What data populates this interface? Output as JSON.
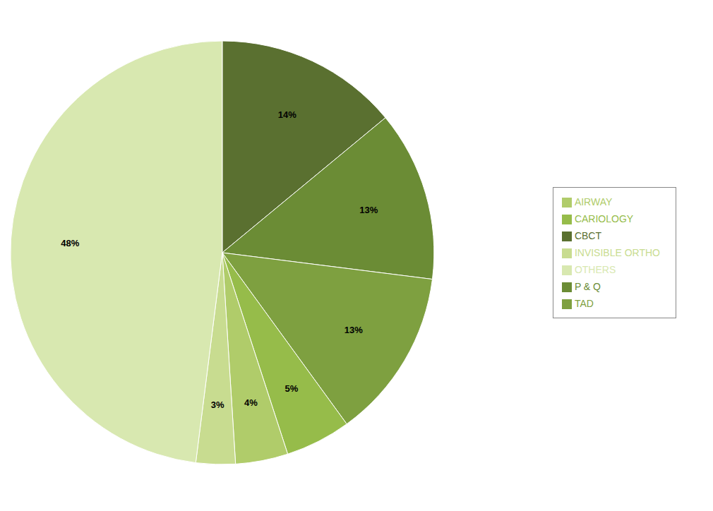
{
  "chart_data": {
    "type": "pie",
    "categories": [
      "CBCT",
      "P & Q",
      "TAD",
      "CARIOLOGY",
      "AIRWAY",
      "INVISIBLE ORTHO",
      "OTHERS"
    ],
    "values": [
      14,
      13,
      13,
      5,
      4,
      3,
      48
    ],
    "value_labels": [
      "14%",
      "13%",
      "13%",
      "5%",
      "4%",
      "3%",
      "48%"
    ],
    "colors": [
      "#5a7030",
      "#6b8c35",
      "#7ea040",
      "#96bc4a",
      "#b0cc6a",
      "#c8dc90",
      "#d8e8b0"
    ],
    "data_labels": true,
    "legend": "right"
  }
}
